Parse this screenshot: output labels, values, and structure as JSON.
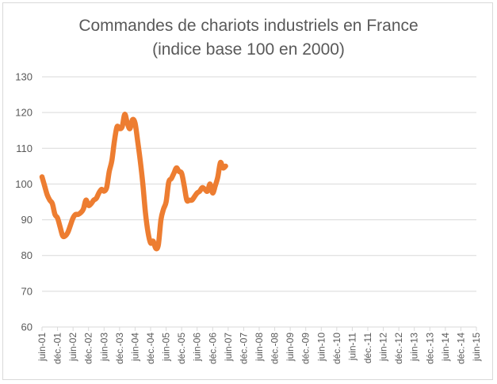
{
  "chart_data": {
    "type": "line",
    "title_line1": "Commandes de chariots industriels en France",
    "title_line2": "(indice base 100 en 2000)",
    "xlabel": "",
    "ylabel": "",
    "ylim": [
      60,
      130
    ],
    "yticks": [
      60,
      70,
      80,
      90,
      100,
      110,
      120,
      130
    ],
    "grid": "horizontal",
    "legend": "none",
    "x_tick_labels": [
      "juin-01",
      "déc.-01",
      "juin-02",
      "déc.-02",
      "juin-03",
      "déc.-03",
      "juin-04",
      "déc.-04",
      "juin-05",
      "déc.-05",
      "juin-06",
      "déc.-06",
      "juin-07",
      "déc.-07",
      "juin-08",
      "déc.-08",
      "juin-09",
      "déc.-09",
      "juin-10",
      "déc.-10",
      "juin-11",
      "déc.-11",
      "juin-12",
      "déc.-12",
      "juin-13",
      "déc.-13",
      "juin-14",
      "déc.-14",
      "juin-15"
    ],
    "line_color": "#ED7D31",
    "grid_color": "#d9d9d9",
    "series": [
      {
        "values": [
          [
            0,
            102
          ],
          [
            1,
            99.5
          ],
          [
            2,
            97
          ],
          [
            3,
            95.5
          ],
          [
            4,
            94.5
          ],
          [
            5,
            91.5
          ],
          [
            6,
            90.5
          ],
          [
            7,
            88
          ],
          [
            8,
            85.5
          ],
          [
            9,
            85.5
          ],
          [
            10,
            86.5
          ],
          [
            11,
            88.5
          ],
          [
            12,
            90.5
          ],
          [
            13,
            91.5
          ],
          [
            14,
            91.5
          ],
          [
            15,
            92
          ],
          [
            16,
            93
          ],
          [
            17,
            95.5
          ],
          [
            18,
            94
          ],
          [
            19,
            94.5
          ],
          [
            20,
            95.5
          ],
          [
            21,
            96
          ],
          [
            22,
            97.5
          ],
          [
            23,
            98.5
          ],
          [
            24,
            98
          ],
          [
            25,
            99
          ],
          [
            26,
            103.5
          ],
          [
            27,
            106.5
          ],
          [
            28,
            112
          ],
          [
            29,
            116
          ],
          [
            30,
            115.5
          ],
          [
            31,
            116
          ],
          [
            32,
            119.5
          ],
          [
            33,
            117
          ],
          [
            34,
            115.5
          ],
          [
            35,
            118
          ],
          [
            36,
            117
          ],
          [
            37,
            112
          ],
          [
            38,
            106.5
          ],
          [
            39,
            100
          ],
          [
            40,
            92
          ],
          [
            41,
            86.5
          ],
          [
            42,
            83.5
          ],
          [
            43,
            84
          ],
          [
            44,
            82
          ],
          [
            45,
            83
          ],
          [
            46,
            90
          ],
          [
            47,
            93
          ],
          [
            48,
            95
          ],
          [
            49,
            100.5
          ],
          [
            50,
            101.5
          ],
          [
            51,
            103
          ],
          [
            52,
            104.5
          ],
          [
            53,
            103.5
          ],
          [
            54,
            103
          ],
          [
            55,
            99.5
          ],
          [
            56,
            95.5
          ],
          [
            57,
            95.5
          ],
          [
            58,
            95.5
          ],
          [
            59,
            96.5
          ],
          [
            60,
            97.5
          ],
          [
            61,
            98
          ],
          [
            62,
            99
          ],
          [
            63,
            98.5
          ],
          [
            64,
            98
          ],
          [
            65,
            100
          ],
          [
            66,
            97.5
          ],
          [
            67,
            99.5
          ],
          [
            68,
            102
          ],
          [
            69,
            106
          ],
          [
            70,
            104.5
          ],
          [
            71,
            105
          ]
        ]
      }
    ]
  }
}
